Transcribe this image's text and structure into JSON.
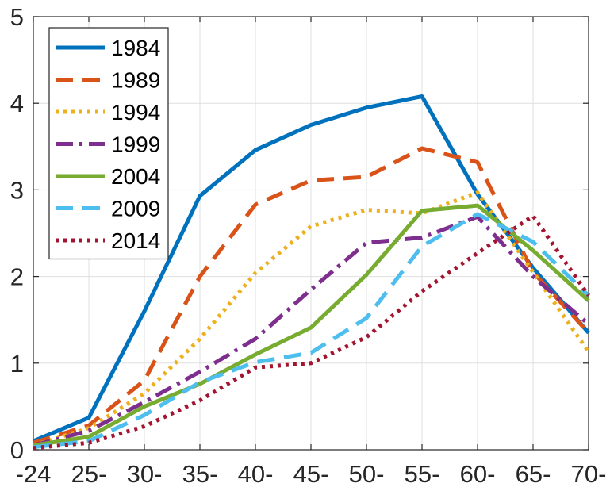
{
  "chart_data": {
    "type": "line",
    "title": "",
    "xlabel": "",
    "ylabel": "",
    "categories": [
      "-24",
      "25-",
      "30-",
      "35-",
      "40-",
      "45-",
      "50-",
      "55-",
      "60-",
      "65-",
      "70-"
    ],
    "ylim": [
      0,
      5
    ],
    "yticks": [
      "0",
      "1",
      "2",
      "3",
      "4",
      "5"
    ],
    "grid": true,
    "legend_position": "top-left",
    "series": [
      {
        "name": "1984",
        "color": "#0072BD",
        "style": "solid",
        "values": [
          0.1,
          0.37,
          1.6,
          2.93,
          3.46,
          3.75,
          3.95,
          4.08,
          2.95,
          2.1,
          1.35
        ]
      },
      {
        "name": "1989",
        "color": "#D95319",
        "style": "dashed",
        "values": [
          0.08,
          0.28,
          0.8,
          2.0,
          2.83,
          3.11,
          3.15,
          3.48,
          3.32,
          2.05,
          1.35
        ]
      },
      {
        "name": "1994",
        "color": "#EDB120",
        "style": "dotted",
        "values": [
          0.05,
          0.25,
          0.65,
          1.28,
          2.04,
          2.58,
          2.77,
          2.73,
          2.97,
          2.05,
          1.13
        ]
      },
      {
        "name": "1999",
        "color": "#7E2F8E",
        "style": "dashdot",
        "values": [
          0.05,
          0.22,
          0.55,
          0.9,
          1.28,
          1.85,
          2.39,
          2.45,
          2.69,
          2.0,
          1.45
        ]
      },
      {
        "name": "2004",
        "color": "#77AC30",
        "style": "solid",
        "values": [
          0.05,
          0.15,
          0.5,
          0.76,
          1.1,
          1.41,
          2.02,
          2.76,
          2.82,
          2.3,
          1.72
        ]
      },
      {
        "name": "2009",
        "color": "#4DBEEE",
        "style": "dashed",
        "values": [
          0.03,
          0.1,
          0.4,
          0.78,
          1.01,
          1.12,
          1.52,
          2.35,
          2.72,
          2.4,
          1.78
        ]
      },
      {
        "name": "2014",
        "color": "#A2142F",
        "style": "dotted",
        "values": [
          0.02,
          0.08,
          0.27,
          0.57,
          0.95,
          1.0,
          1.3,
          1.83,
          2.27,
          2.7,
          1.78
        ]
      }
    ]
  }
}
